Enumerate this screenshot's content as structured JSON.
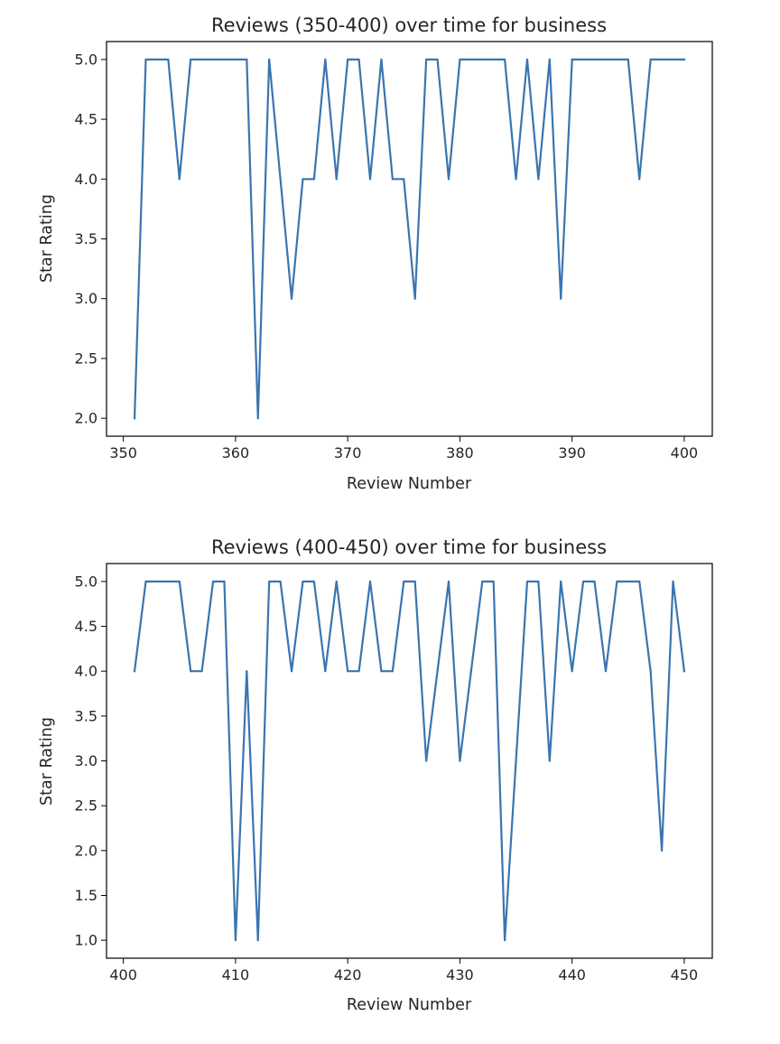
{
  "chart_data": [
    {
      "type": "line",
      "title": "Reviews (350-400) over time for business",
      "xlabel": "Review Number",
      "ylabel": "Star Rating",
      "xlim": [
        348.5,
        402.5
      ],
      "ylim": [
        1.85,
        5.15
      ],
      "xticks": [
        350,
        360,
        370,
        380,
        390,
        400
      ],
      "yticks": [
        2.0,
        2.5,
        3.0,
        3.5,
        4.0,
        4.5,
        5.0
      ],
      "grid": false,
      "color": "#3a75af",
      "x": [
        351,
        352,
        353,
        354,
        355,
        356,
        357,
        358,
        359,
        360,
        361,
        362,
        363,
        364,
        365,
        366,
        367,
        368,
        369,
        370,
        371,
        372,
        373,
        374,
        375,
        376,
        377,
        378,
        379,
        380,
        381,
        382,
        383,
        384,
        385,
        386,
        387,
        388,
        389,
        390,
        391,
        392,
        393,
        394,
        395,
        396,
        397,
        398,
        399,
        400
      ],
      "y": [
        2,
        5,
        5,
        5,
        4,
        5,
        5,
        5,
        5,
        5,
        5,
        2,
        5,
        4,
        3,
        4,
        4,
        5,
        4,
        5,
        5,
        4,
        5,
        4,
        4,
        3,
        5,
        5,
        4,
        5,
        5,
        5,
        5,
        5,
        4,
        5,
        4,
        5,
        3,
        5,
        5,
        5,
        5,
        5,
        5,
        4,
        5,
        5,
        5,
        5
      ]
    },
    {
      "type": "line",
      "title": "Reviews (400-450) over time for business",
      "xlabel": "Review Number",
      "ylabel": "Star Rating",
      "xlim": [
        398.5,
        452.5
      ],
      "ylim": [
        0.8,
        5.2
      ],
      "xticks": [
        400,
        410,
        420,
        430,
        440,
        450
      ],
      "yticks": [
        1.0,
        1.5,
        2.0,
        2.5,
        3.0,
        3.5,
        4.0,
        4.5,
        5.0
      ],
      "grid": false,
      "color": "#3a75af",
      "x": [
        401,
        402,
        403,
        404,
        405,
        406,
        407,
        408,
        409,
        410,
        411,
        412,
        413,
        414,
        415,
        416,
        417,
        418,
        419,
        420,
        421,
        422,
        423,
        424,
        425,
        426,
        427,
        428,
        429,
        430,
        431,
        432,
        433,
        434,
        435,
        436,
        437,
        438,
        439,
        440,
        441,
        442,
        443,
        444,
        445,
        446,
        447,
        448,
        449,
        450
      ],
      "y": [
        4,
        5,
        5,
        5,
        5,
        4,
        4,
        5,
        5,
        1,
        4,
        1,
        5,
        5,
        4,
        5,
        5,
        4,
        5,
        4,
        4,
        5,
        4,
        4,
        5,
        5,
        3,
        4,
        5,
        3,
        4,
        5,
        5,
        1,
        3,
        5,
        5,
        3,
        5,
        4,
        5,
        5,
        4,
        5,
        5,
        5,
        4,
        2,
        5,
        4
      ]
    }
  ]
}
